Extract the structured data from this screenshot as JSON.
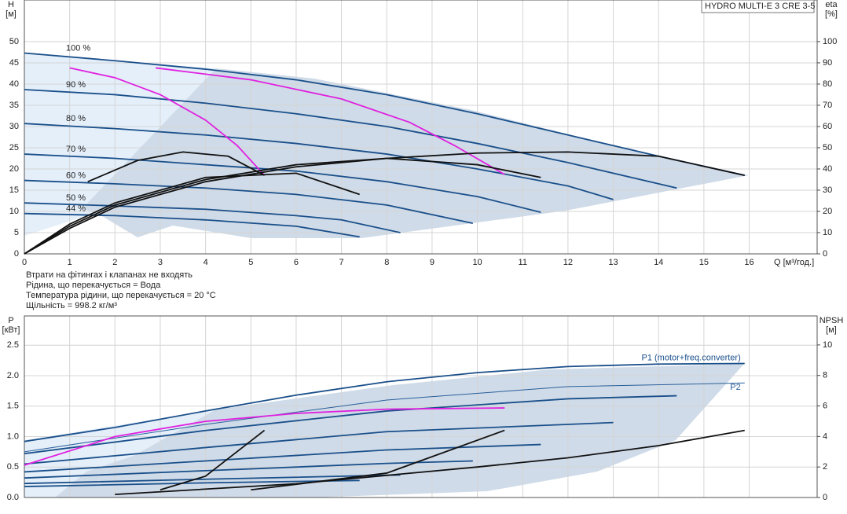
{
  "chart_data": [
    {
      "type": "line",
      "title": "HYDRO MULTI-E 3 CRE 3-5",
      "y_label": "H",
      "y_unit": "[м]",
      "y2_label": "eta",
      "y2_unit": "[%]",
      "x_label": "Q [м³/год.]",
      "notes": [
        "Втрати на фітингах і клапанах не входять",
        "Рідина, що перекачується = Вода",
        "Температура рідини, що перекачується = 20 °C",
        "Щільність = 998.2 кг/м³"
      ],
      "xlim": [
        0,
        17.5
      ],
      "ylim": [
        0,
        59.8
      ],
      "y2lim": [
        0,
        119.6
      ],
      "grid": true,
      "xticks": [
        0,
        1,
        2,
        3,
        4,
        5,
        6,
        7,
        8,
        9,
        10,
        11,
        12,
        13,
        14,
        15,
        16
      ],
      "yticks": [
        0,
        5,
        10,
        15,
        20,
        25,
        30,
        35,
        40,
        45,
        50
      ],
      "y2ticks": [
        0,
        10,
        20,
        30,
        40,
        50,
        60,
        70,
        80,
        90,
        100
      ],
      "series": [
        {
          "name": "100 %",
          "color": "#1a4f8a",
          "x": [
            0,
            2,
            4,
            6,
            8,
            10,
            12,
            14,
            15.9
          ],
          "values": [
            47.3,
            45.5,
            43.5,
            41,
            37.5,
            33,
            28,
            23,
            18.5
          ]
        },
        {
          "name": "90 %",
          "color": "#1a4f8a",
          "x": [
            0,
            2,
            4,
            6,
            8,
            10,
            12,
            14.4
          ],
          "values": [
            38.7,
            37.5,
            35.5,
            33,
            30,
            26,
            21.5,
            15.5
          ]
        },
        {
          "name": "80 %",
          "color": "#1a4f8a",
          "x": [
            0,
            2,
            4,
            6,
            8,
            10,
            12,
            13
          ],
          "values": [
            30.7,
            29.5,
            28,
            26,
            23.5,
            20,
            16,
            12.8
          ]
        },
        {
          "name": "70 %",
          "color": "#1a4f8a",
          "x": [
            0,
            2,
            4,
            6,
            8,
            10,
            11.4
          ],
          "values": [
            23.5,
            22.5,
            21,
            19.5,
            17,
            13.5,
            9.8
          ]
        },
        {
          "name": "60 %",
          "color": "#1a4f8a",
          "x": [
            0,
            2,
            4,
            6,
            8,
            9.9
          ],
          "values": [
            17.3,
            16.5,
            15.5,
            14,
            11.5,
            7.2
          ]
        },
        {
          "name": "50 %",
          "color": "#1a4f8a",
          "x": [
            0,
            2,
            4,
            6,
            7,
            8.3
          ],
          "values": [
            12,
            11.3,
            10.5,
            9,
            8,
            5
          ]
        },
        {
          "name": "44 %",
          "color": "#1a4f8a",
          "x": [
            0,
            2,
            4,
            6,
            7.4
          ],
          "values": [
            9.5,
            9,
            8,
            6.5,
            4
          ]
        },
        {
          "color": "#e020e0",
          "x": [
            1,
            2,
            3,
            4,
            4.7,
            5.3
          ],
          "values": [
            43.8,
            41.5,
            37.5,
            31.5,
            25.5,
            18.5
          ]
        },
        {
          "color": "#e020e0",
          "x": [
            2.9,
            5,
            7,
            8.5,
            9.5,
            10.6
          ],
          "values": [
            43.8,
            41,
            36.5,
            31,
            25.5,
            18.7
          ]
        },
        {
          "color": "#111111",
          "axis": "y2",
          "x": [
            0,
            1,
            2,
            4,
            6,
            8,
            10,
            12,
            14,
            15.9
          ],
          "values": [
            0,
            12,
            22,
            34,
            41,
            45,
            47.5,
            48,
            46,
            37
          ]
        },
        {
          "color": "#111111",
          "axis": "y2",
          "x": [
            0,
            1,
            2,
            4,
            6,
            8,
            10,
            11.4
          ],
          "values": [
            0,
            13,
            23,
            35,
            42,
            45,
            42,
            36
          ]
        },
        {
          "color": "#111111",
          "axis": "y2",
          "x": [
            0,
            1,
            2,
            4,
            6,
            7.4
          ],
          "values": [
            0,
            14,
            24,
            36,
            38,
            28
          ]
        },
        {
          "color": "#111111",
          "axis": "y2",
          "x": [
            1.4,
            2.5,
            3.5,
            4.5,
            5.3
          ],
          "values": [
            34,
            44,
            48,
            46,
            37
          ]
        }
      ]
    },
    {
      "type": "line",
      "y_label": "P",
      "y_unit": "[кВт]",
      "y2_label": "NPSH",
      "y2_unit": "[м]",
      "xlim": [
        0,
        17.5
      ],
      "ylim": [
        0,
        2.98
      ],
      "y2lim": [
        0,
        11.9
      ],
      "grid": true,
      "xticks": [
        0,
        1,
        2,
        3,
        4,
        5,
        6,
        7,
        8,
        9,
        10,
        11,
        12,
        13,
        14,
        15,
        16
      ],
      "yticks": [
        {
          "value": 0,
          "label": "0.0"
        },
        0.5,
        {
          "value": 1,
          "label": "1.0"
        },
        1.5,
        {
          "value": 2,
          "label": "2.0"
        },
        2.5
      ],
      "y2ticks": [
        0,
        2,
        4,
        6,
        8,
        10
      ],
      "series": [
        {
          "name": "P1 (motor+freq.converter)",
          "color": "#1a4f8a",
          "x": [
            0,
            2,
            4,
            6,
            8,
            10,
            12,
            14,
            15.9
          ],
          "values": [
            0.92,
            1.15,
            1.42,
            1.68,
            1.9,
            2.05,
            2.15,
            2.19,
            2.2
          ]
        },
        {
          "name": "P2",
          "color": "#2a5f9a",
          "x": [
            0,
            4,
            8,
            12,
            15.9
          ],
          "values": [
            0.75,
            1.2,
            1.6,
            1.82,
            1.88
          ]
        },
        {
          "color": "#1a4f8a",
          "x": [
            0,
            4,
            8,
            12,
            14.4
          ],
          "values": [
            0.72,
            1.1,
            1.42,
            1.62,
            1.67
          ]
        },
        {
          "color": "#1a4f8a",
          "x": [
            0,
            4,
            8,
            13
          ],
          "values": [
            0.55,
            0.82,
            1.08,
            1.23
          ]
        },
        {
          "color": "#1a4f8a",
          "x": [
            0,
            4,
            8,
            11.4
          ],
          "values": [
            0.42,
            0.6,
            0.78,
            0.87
          ]
        },
        {
          "color": "#1a4f8a",
          "x": [
            0,
            4,
            8,
            9.9
          ],
          "values": [
            0.32,
            0.44,
            0.56,
            0.6
          ]
        },
        {
          "color": "#1a4f8a",
          "x": [
            0,
            4,
            8.3
          ],
          "values": [
            0.23,
            0.3,
            0.37
          ]
        },
        {
          "color": "#1a4f8a",
          "x": [
            0,
            4,
            7.4
          ],
          "values": [
            0.18,
            0.24,
            0.28
          ]
        },
        {
          "color": "#e020e0",
          "x": [
            0,
            2,
            4,
            6,
            8,
            10.6
          ],
          "values": [
            0.53,
            1.0,
            1.25,
            1.38,
            1.45,
            1.47
          ]
        },
        {
          "color": "#111111",
          "axis": "y2",
          "x": [
            2,
            6,
            10,
            12,
            14,
            15.9
          ],
          "values": [
            0.2,
            0.9,
            2,
            2.6,
            3.4,
            4.4
          ]
        },
        {
          "color": "#111111",
          "axis": "y2",
          "x": [
            3,
            4,
            5.3
          ],
          "values": [
            0.5,
            1.4,
            4.4
          ]
        },
        {
          "color": "#111111",
          "axis": "y2",
          "x": [
            5,
            8,
            10.6
          ],
          "values": [
            0.5,
            1.6,
            4.4
          ]
        }
      ]
    }
  ]
}
